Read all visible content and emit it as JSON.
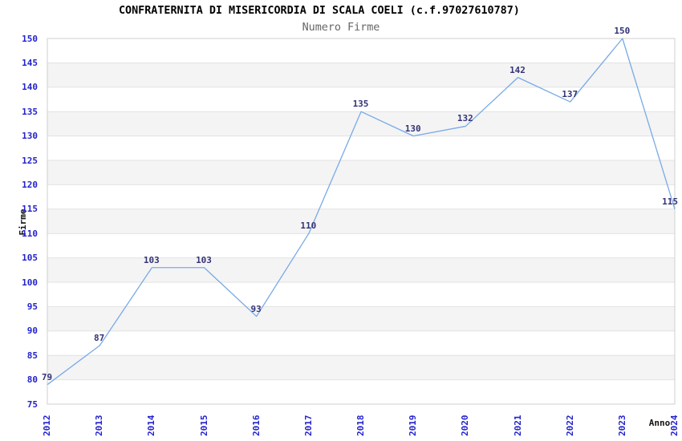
{
  "chart_data": {
    "type": "line",
    "title": "CONFRATERNITA DI MISERICORDIA DI SCALA COELI (c.f.97027610787)",
    "subtitle": "Numero Firme",
    "xlabel": "Anno",
    "ylabel": "Firme",
    "categories": [
      "2012",
      "2013",
      "2014",
      "2015",
      "2016",
      "2017",
      "2018",
      "2019",
      "2020",
      "2021",
      "2022",
      "2023",
      "2024"
    ],
    "values": [
      79,
      87,
      103,
      103,
      93,
      110,
      135,
      130,
      132,
      142,
      137,
      150,
      115
    ],
    "ylim": [
      75,
      150
    ],
    "ytick_step": 5,
    "yticks": [
      75,
      80,
      85,
      90,
      95,
      100,
      105,
      110,
      115,
      120,
      125,
      130,
      135,
      140,
      145,
      150
    ],
    "grid": "horizontal",
    "legend_position": "none",
    "data_labels_shown": true,
    "colors": {
      "line": "#78aae6",
      "axis_tick_label": "#2222cc",
      "data_label": "#333377",
      "band_fill": "#f4f4f4",
      "gridline": "#e2e2e2",
      "plot_border": "#cfcfcf",
      "title": "#000000",
      "subtitle": "#666666",
      "background": "#ffffff"
    }
  }
}
